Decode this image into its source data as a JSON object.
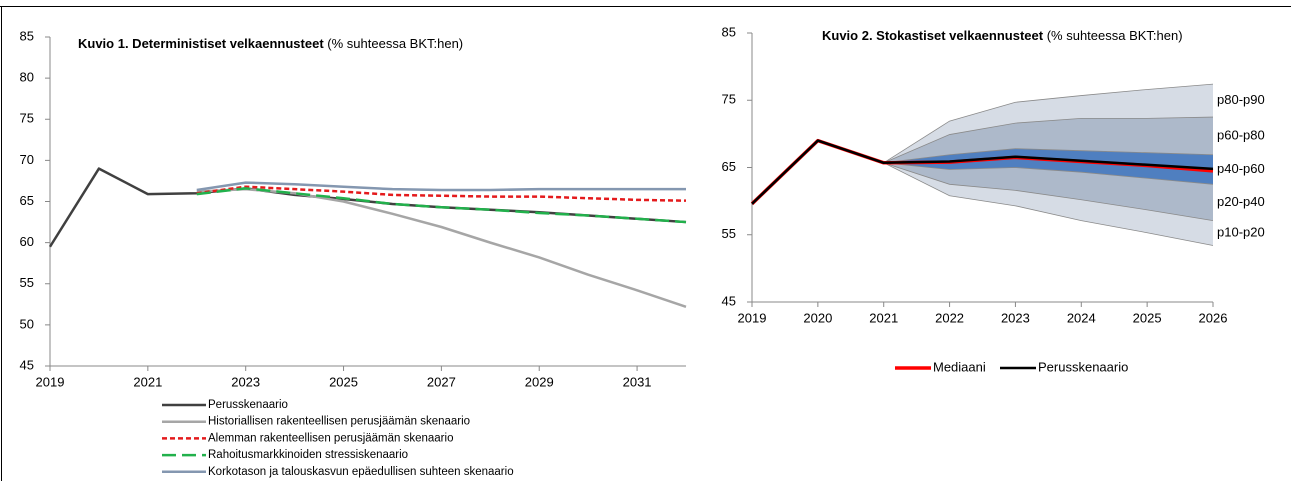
{
  "chart_data": [
    {
      "type": "line",
      "title": "Kuvio 1. Deterministiset  velkaennusteet",
      "title_unit": "(% suhteessa BKT:hen)",
      "x": [
        2019,
        2020,
        2021,
        2022,
        2023,
        2024,
        2025,
        2026,
        2027,
        2028,
        2029,
        2030,
        2031,
        2032
      ],
      "xlim": [
        2019,
        2032
      ],
      "xticks": [
        2019,
        2021,
        2023,
        2025,
        2027,
        2029,
        2031
      ],
      "ylim": [
        45,
        85
      ],
      "yticks": [
        45,
        50,
        55,
        60,
        65,
        70,
        75,
        80,
        85
      ],
      "grid": false,
      "legend": "bottom",
      "series": [
        {
          "name": "Perusskenaario",
          "color": "#404040",
          "width": 2.5,
          "dash": "solid",
          "values": [
            59.5,
            69,
            65.9,
            66,
            66.6,
            65.8,
            65.3,
            64.7,
            64.3,
            64,
            63.7,
            63.3,
            62.9,
            62.5
          ]
        },
        {
          "name": "Historiallisen rakenteellisen perusjäämän skenaario",
          "color": "#a6a6a6",
          "width": 2.5,
          "dash": "solid",
          "values": [
            null,
            null,
            null,
            66.2,
            66.5,
            66,
            65,
            63.5,
            61.9,
            60,
            58.2,
            56.1,
            54.2,
            52.2
          ]
        },
        {
          "name": "Alemman rakenteellisen perusjäämän skenaario",
          "color": "#e41a1c",
          "width": 2.5,
          "dash": "dotted",
          "values": [
            null,
            null,
            null,
            66,
            66.8,
            66.5,
            66.2,
            65.8,
            65.7,
            65.6,
            65.6,
            65.4,
            65.2,
            65.1
          ]
        },
        {
          "name": "Rahoitusmarkkinoiden stressiskenaario",
          "color": "#22b14c",
          "width": 2.5,
          "dash": "dashed",
          "values": [
            null,
            null,
            null,
            65.9,
            66.6,
            66,
            65.4,
            64.7,
            64.3,
            64,
            63.6,
            63.3,
            62.9,
            62.5
          ]
        },
        {
          "name": "Korkotason ja talouskasvun epäedullisen suhteen skenaario",
          "color": "#8497b0",
          "width": 2.5,
          "dash": "solid",
          "values": [
            null,
            null,
            null,
            66.4,
            67.3,
            67.1,
            66.8,
            66.5,
            66.4,
            66.4,
            66.5,
            66.5,
            66.5,
            66.5
          ]
        }
      ]
    },
    {
      "type": "line",
      "title": "Kuvio 2. Stokastiset velkaennusteet",
      "title_unit": "(% suhteessa BKT:hen)",
      "x": [
        2019,
        2020,
        2021,
        2022,
        2023,
        2024,
        2025,
        2026
      ],
      "xlim": [
        2019,
        2026
      ],
      "xticks": [
        2019,
        2020,
        2021,
        2022,
        2023,
        2024,
        2025,
        2026
      ],
      "ylim": [
        45,
        85
      ],
      "yticks": [
        45,
        55,
        65,
        75,
        85
      ],
      "grid": false,
      "legend": "bottom",
      "quantiles": [
        [
          null,
          null,
          65.7,
          60.8,
          59.3,
          57.1,
          55.3,
          53.4
        ],
        [
          null,
          null,
          65.7,
          62.5,
          61.6,
          60.2,
          58.7,
          57.1
        ],
        [
          null,
          null,
          65.7,
          64.7,
          65,
          64.3,
          63.4,
          62.5
        ],
        [
          null,
          null,
          65.7,
          66.9,
          67.8,
          67.5,
          67.2,
          66.9
        ],
        [
          null,
          null,
          65.7,
          69.9,
          71.6,
          72.3,
          72.3,
          72.5
        ],
        [
          null,
          null,
          65.7,
          71.9,
          74.7,
          75.7,
          76.6,
          77.4
        ]
      ],
      "band_labels": [
        "p10-p20",
        "p20-p40",
        "p40-p60",
        "p60-p80",
        "p80-p90"
      ],
      "band_colors": [
        "#d6dce5",
        "#adb9ca",
        "#4f7fc0",
        "#adb9ca",
        "#d6dce5"
      ],
      "series": [
        {
          "name": "Mediaani",
          "color": "#ff0000",
          "width": 3.5,
          "dash": "solid",
          "values": [
            59.6,
            69,
            65.7,
            65.8,
            66.5,
            65.9,
            65.3,
            64.5
          ]
        },
        {
          "name": "Perusskenaario",
          "color": "#000000",
          "width": 2.5,
          "dash": "solid",
          "values": [
            59.6,
            69,
            65.7,
            65.9,
            66.6,
            66,
            65.4,
            64.8
          ]
        }
      ]
    }
  ]
}
